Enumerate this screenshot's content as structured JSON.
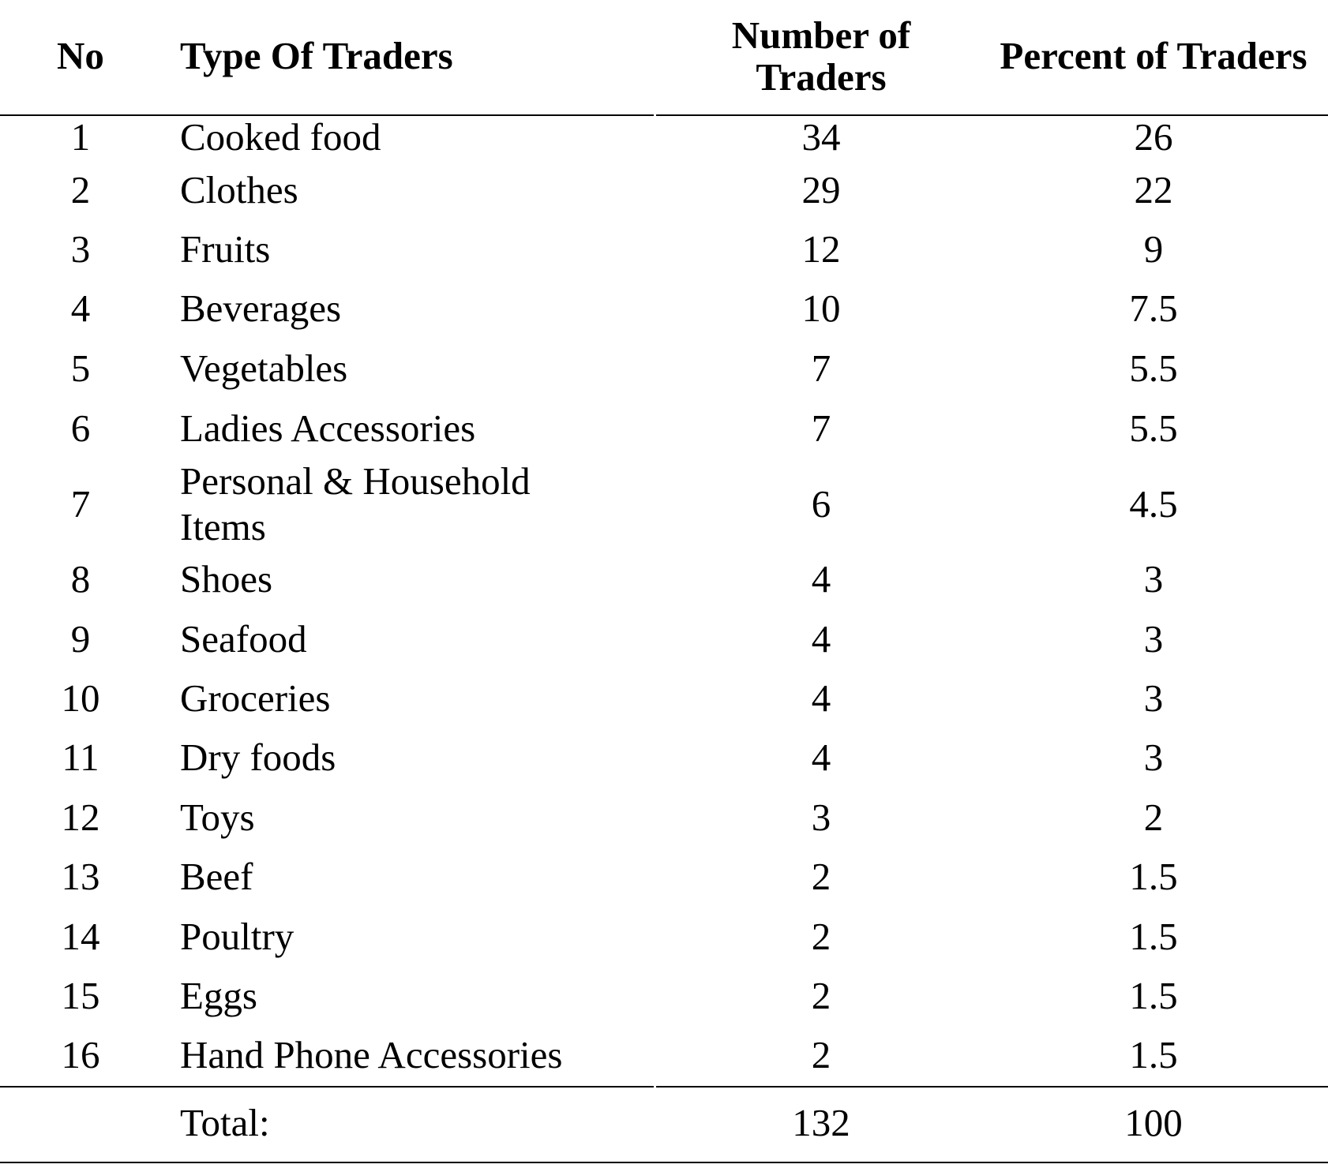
{
  "table": {
    "headers": {
      "no": "No",
      "type": "Type Of Traders",
      "number_line1": "Number of",
      "number_line2": "Traders",
      "percent": "Percent of Traders"
    },
    "rows": [
      {
        "no": "1",
        "type": "Cooked food",
        "number": "34",
        "percent": "26"
      },
      {
        "no": "2",
        "type": "Clothes",
        "number": "29",
        "percent": "22"
      },
      {
        "no": "3",
        "type": "Fruits",
        "number": "12",
        "percent": "9"
      },
      {
        "no": "4",
        "type": "Beverages",
        "number": "10",
        "percent": "7.5"
      },
      {
        "no": "5",
        "type": "Vegetables",
        "number": "7",
        "percent": "5.5"
      },
      {
        "no": "6",
        "type": "Ladies Accessories",
        "number": "7",
        "percent": "5.5"
      },
      {
        "no": "7",
        "type_line1": "Personal & Household",
        "type_line2": "Items",
        "number": "6",
        "percent": "4.5"
      },
      {
        "no": "8",
        "type": "Shoes",
        "number": "4",
        "percent": "3"
      },
      {
        "no": "9",
        "type": "Seafood",
        "number": "4",
        "percent": "3"
      },
      {
        "no": "10",
        "type": "Groceries",
        "number": "4",
        "percent": "3"
      },
      {
        "no": "11",
        "type": "Dry foods",
        "number": "4",
        "percent": "3"
      },
      {
        "no": "12",
        "type": "Toys",
        "number": "3",
        "percent": "2"
      },
      {
        "no": "13",
        "type": "Beef",
        "number": "2",
        "percent": "1.5"
      },
      {
        "no": "14",
        "type": "Poultry",
        "number": "2",
        "percent": "1.5"
      },
      {
        "no": "15",
        "type": "Eggs",
        "number": "2",
        "percent": "1.5"
      },
      {
        "no": "16",
        "type": "Hand Phone Accessories",
        "number": "2",
        "percent": "1.5"
      }
    ],
    "total": {
      "label": "Total:",
      "number": "132",
      "percent": "100"
    }
  }
}
